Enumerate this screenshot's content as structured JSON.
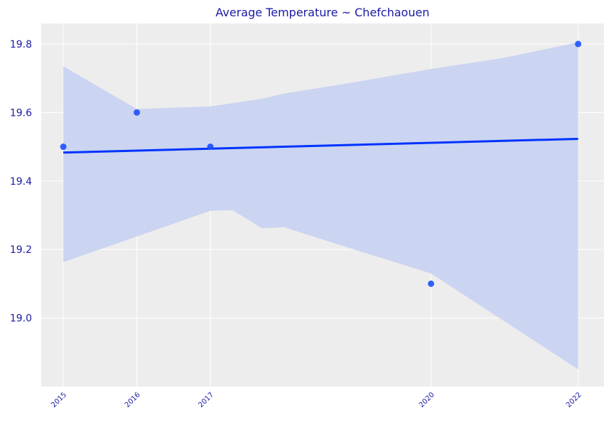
{
  "chart_data": {
    "type": "scatter",
    "title": "Average Temperature ~ Chefchaouen",
    "xlabel": "",
    "ylabel": "",
    "x": [
      2015,
      2016,
      2017,
      2020,
      2022
    ],
    "y": [
      19.5,
      19.6,
      19.5,
      19.1,
      19.8
    ],
    "xticks": [
      "2015",
      "2016",
      "2017",
      "2020",
      "2022"
    ],
    "yticks": [
      "19.0",
      "19.2",
      "19.4",
      "19.6",
      "19.8"
    ],
    "xlim": [
      2014.7,
      2022.35
    ],
    "ylim": [
      18.8,
      19.86
    ],
    "grid": true,
    "regression": {
      "x": [
        2015,
        2022
      ],
      "y": [
        19.483,
        19.523
      ]
    },
    "confidence_band": {
      "x": [
        2015,
        2016,
        2017,
        2017.3,
        2017.7,
        2018,
        2019,
        2020,
        2021,
        2022
      ],
      "upper": [
        19.735,
        19.61,
        19.618,
        19.627,
        19.64,
        19.655,
        19.69,
        19.727,
        19.76,
        19.805
      ],
      "lower": [
        19.163,
        19.238,
        19.313,
        19.315,
        19.262,
        19.265,
        19.197,
        19.13,
        18.99,
        18.85
      ]
    },
    "colors": {
      "points": "#1c4fff",
      "line": "#0033ff",
      "band": "#c9d3f1",
      "plot_background": "#ededed",
      "grid": "#ffffff",
      "text": "#1a1aa6"
    }
  }
}
